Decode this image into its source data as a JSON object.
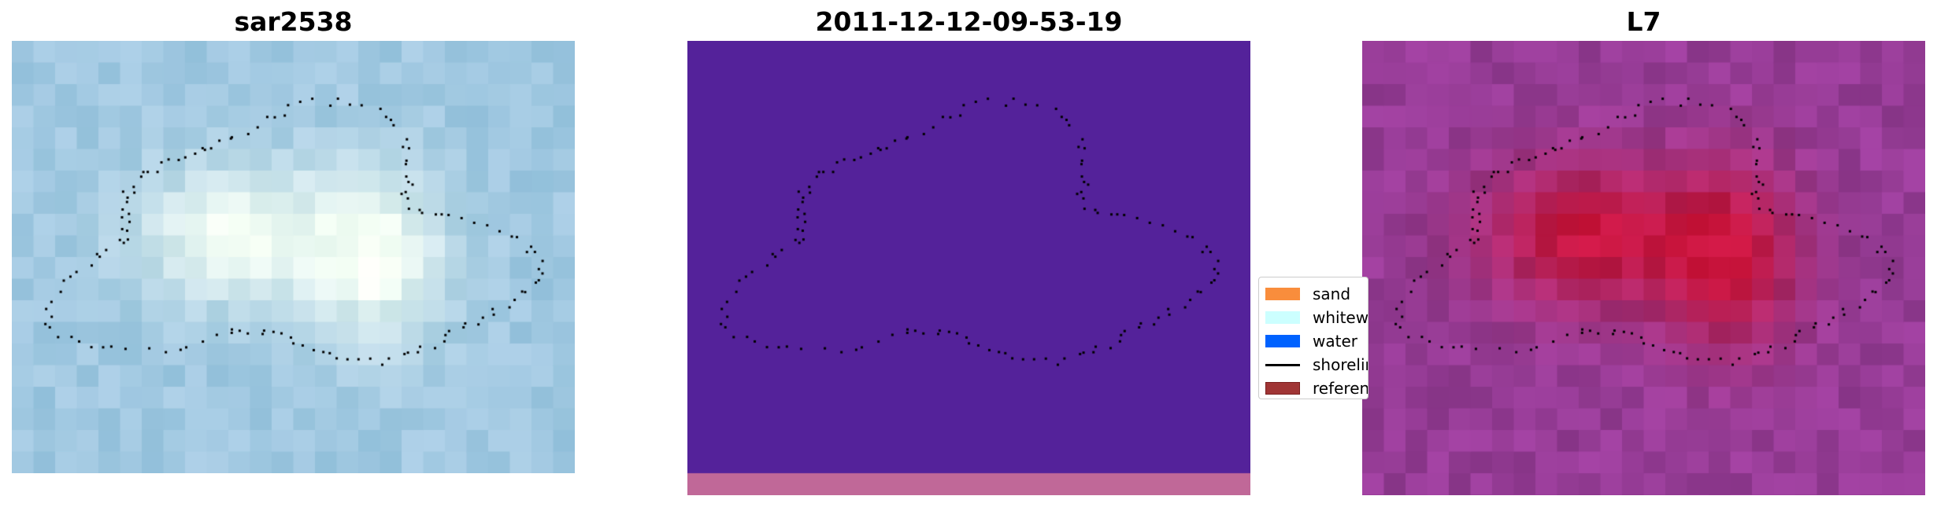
{
  "chart_data": [
    {
      "type": "heatmap",
      "title": "sar2538",
      "colormap": "light blue RGB composite",
      "overlay": "shoreline dots"
    },
    {
      "type": "heatmap",
      "title": "2011-12-12-09-53-19",
      "colormap": "classified map",
      "overlay": "shoreline dots"
    },
    {
      "type": "heatmap",
      "title": "L7",
      "colormap": "purple-red",
      "overlay": "shoreline dots"
    }
  ],
  "legend": {
    "placement": "right of middle panel",
    "items": [
      {
        "label": "sand",
        "color": "#f98d3c",
        "kind": "patch"
      },
      {
        "label": "whitewater",
        "color": "#ccffff",
        "kind": "patch"
      },
      {
        "label": "water",
        "color": "#0062ff",
        "kind": "patch"
      },
      {
        "label": "shoreline",
        "color": "#000000",
        "kind": "line"
      },
      {
        "label": "reference",
        "color": "#a03535",
        "kind": "patch"
      }
    ]
  },
  "colors": {
    "middle_background": "#54229a",
    "middle_strip": "#c06898"
  }
}
